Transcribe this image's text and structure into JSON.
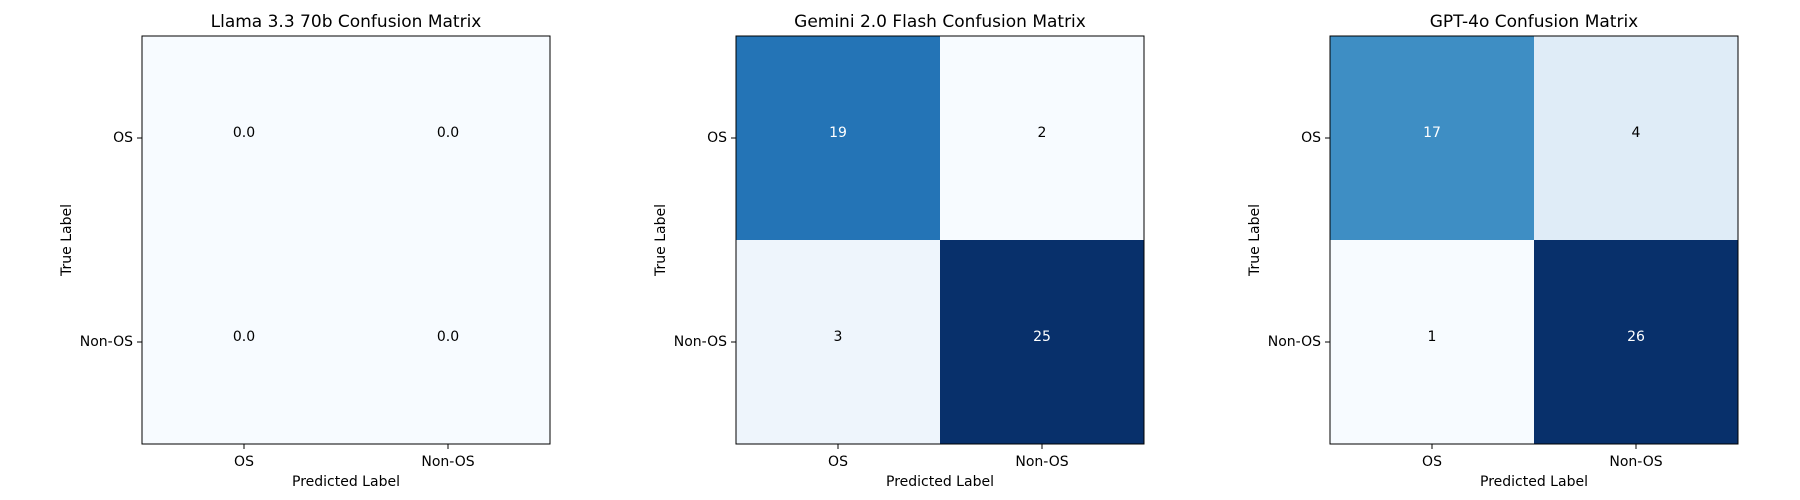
{
  "chart_data": [
    {
      "type": "heatmap",
      "title": "Llama 3.3 70b Confusion Matrix",
      "xlabel": "Predicted Label",
      "ylabel": "True Label",
      "x_categories": [
        "OS",
        "Non-OS"
      ],
      "y_categories": [
        "OS",
        "Non-OS"
      ],
      "colormap": "Blues",
      "values": [
        [
          0,
          0
        ],
        [
          0,
          0
        ]
      ],
      "value_labels": [
        [
          "0.0",
          "0.0"
        ],
        [
          "0.0",
          "0.0"
        ]
      ]
    },
    {
      "type": "heatmap",
      "title": "Gemini 2.0 Flash Confusion Matrix",
      "xlabel": "Predicted Label",
      "ylabel": "True Label",
      "x_categories": [
        "OS",
        "Non-OS"
      ],
      "y_categories": [
        "OS",
        "Non-OS"
      ],
      "colormap": "Blues",
      "values": [
        [
          19,
          2
        ],
        [
          3,
          25
        ]
      ]
    },
    {
      "type": "heatmap",
      "title": "GPT-4o Confusion Matrix",
      "xlabel": "Predicted Label",
      "ylabel": "True Label",
      "x_categories": [
        "OS",
        "Non-OS"
      ],
      "y_categories": [
        "OS",
        "Non-OS"
      ],
      "colormap": "Blues",
      "values": [
        [
          17,
          4
        ],
        [
          1,
          26
        ]
      ]
    }
  ]
}
